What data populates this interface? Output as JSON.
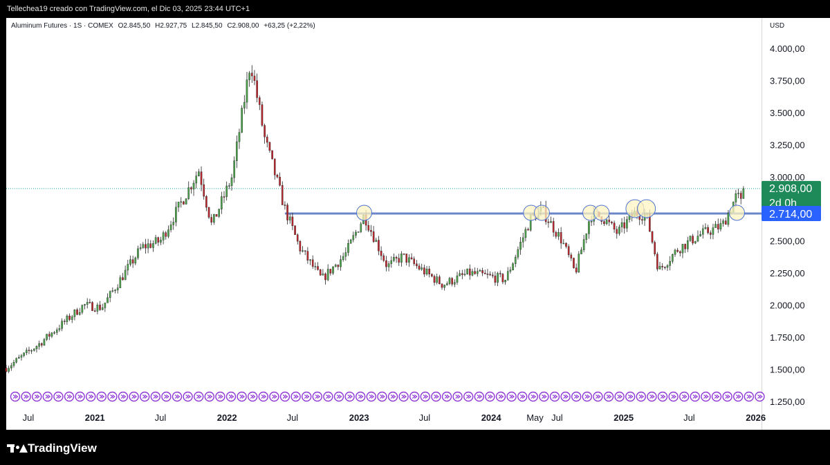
{
  "header": {
    "credit": "Tellechea19 creado con TradingView.com, el Dic 03, 2025 23:44 UTC+1"
  },
  "legend": {
    "symbol": "Aluminum Futures · 1S · COMEX",
    "open": "O2.845,50",
    "high": "H2.927,75",
    "low": "L2.845,50",
    "close": "C2.908,00",
    "change": "+63,25 (+2,22%)"
  },
  "currency": "USD",
  "price_tag": {
    "price": "2.908,00",
    "countdown": "2d 0h",
    "color": "#1e8a5a"
  },
  "level_tag": {
    "price": "2.714,00",
    "color": "#2962ff"
  },
  "brand": {
    "name": "TradingView"
  },
  "colors": {
    "up": "#4ca64c",
    "down": "#c0262e",
    "level_line": "#6b86c8",
    "circle_fill": "#fff4c2",
    "circle_stroke": "#4a73d4",
    "event_icon": "#8e35d6"
  },
  "chart_data": {
    "type": "candlestick",
    "title": "Aluminum Futures · 1S · COMEX",
    "ylabel": "USD",
    "ylim": [
      1250,
      4150
    ],
    "y_ticks": [
      {
        "value": 1250,
        "label": "1.250,00"
      },
      {
        "value": 1500,
        "label": "1.500,00"
      },
      {
        "value": 1750,
        "label": "1.750,00"
      },
      {
        "value": 2000,
        "label": "2.000,00"
      },
      {
        "value": 2250,
        "label": "2.250,00"
      },
      {
        "value": 2500,
        "label": "2.500,00"
      },
      {
        "value": 2750,
        "label": "2.750,00"
      },
      {
        "value": 3000,
        "label": "3.000,00"
      },
      {
        "value": 3250,
        "label": "3.250,00"
      },
      {
        "value": 3500,
        "label": "3.500,00"
      },
      {
        "value": 3750,
        "label": "3.750,00"
      },
      {
        "value": 4000,
        "label": "4.000,00"
      }
    ],
    "x_ticks": [
      {
        "date": "2020-07-01",
        "label": "Jul",
        "bold": false
      },
      {
        "date": "2021-01-01",
        "label": "2021",
        "bold": true
      },
      {
        "date": "2021-07-01",
        "label": "Jul",
        "bold": false
      },
      {
        "date": "2022-01-01",
        "label": "2022",
        "bold": true
      },
      {
        "date": "2022-07-01",
        "label": "Jul",
        "bold": false
      },
      {
        "date": "2023-01-01",
        "label": "2023",
        "bold": true
      },
      {
        "date": "2023-07-01",
        "label": "Jul",
        "bold": false
      },
      {
        "date": "2024-01-01",
        "label": "2024",
        "bold": true
      },
      {
        "date": "2024-05-01",
        "label": "May",
        "bold": false
      },
      {
        "date": "2024-07-01",
        "label": "Jul",
        "bold": false
      },
      {
        "date": "2025-01-01",
        "label": "2025",
        "bold": true
      },
      {
        "date": "2025-07-01",
        "label": "Jul",
        "bold": false
      },
      {
        "date": "2026-01-01",
        "label": "2026",
        "bold": true
      }
    ],
    "last_close": 2908,
    "horizontal_level": 2714,
    "marked_highs": [
      "2023-01-15",
      "2024-04-20",
      "2024-05-20",
      "2024-10-01",
      "2024-11-01",
      "2025-02-01",
      "2025-03-05",
      "2025-11-10"
    ],
    "trend_anchors": [
      {
        "date": "2020-05-01",
        "price": 1510
      },
      {
        "date": "2020-08-01",
        "price": 1700
      },
      {
        "date": "2020-12-01",
        "price": 2000
      },
      {
        "date": "2021-01-20",
        "price": 1980
      },
      {
        "date": "2021-05-10",
        "price": 2450
      },
      {
        "date": "2021-07-01",
        "price": 2500
      },
      {
        "date": "2021-10-15",
        "price": 3050
      },
      {
        "date": "2021-11-20",
        "price": 2620
      },
      {
        "date": "2022-01-15",
        "price": 3000
      },
      {
        "date": "2022-03-07",
        "price": 3900
      },
      {
        "date": "2022-04-15",
        "price": 3300
      },
      {
        "date": "2022-06-10",
        "price": 2750
      },
      {
        "date": "2022-07-20",
        "price": 2450
      },
      {
        "date": "2022-09-20",
        "price": 2200
      },
      {
        "date": "2022-11-25",
        "price": 2400
      },
      {
        "date": "2023-01-15",
        "price": 2700
      },
      {
        "date": "2023-03-20",
        "price": 2300
      },
      {
        "date": "2023-05-01",
        "price": 2380
      },
      {
        "date": "2023-08-20",
        "price": 2160
      },
      {
        "date": "2023-11-01",
        "price": 2250
      },
      {
        "date": "2024-02-10",
        "price": 2200
      },
      {
        "date": "2024-04-20",
        "price": 2680
      },
      {
        "date": "2024-05-20",
        "price": 2740
      },
      {
        "date": "2024-07-15",
        "price": 2500
      },
      {
        "date": "2024-08-20",
        "price": 2250
      },
      {
        "date": "2024-10-01",
        "price": 2700
      },
      {
        "date": "2024-11-01",
        "price": 2690
      },
      {
        "date": "2024-12-15",
        "price": 2560
      },
      {
        "date": "2025-02-01",
        "price": 2720
      },
      {
        "date": "2025-03-05",
        "price": 2700
      },
      {
        "date": "2025-04-08",
        "price": 2270
      },
      {
        "date": "2025-06-01",
        "price": 2440
      },
      {
        "date": "2025-08-01",
        "price": 2550
      },
      {
        "date": "2025-10-01",
        "price": 2620
      },
      {
        "date": "2025-11-10",
        "price": 2860
      },
      {
        "date": "2025-11-24",
        "price": 2780
      },
      {
        "date": "2025-12-03",
        "price": 2908
      }
    ]
  }
}
